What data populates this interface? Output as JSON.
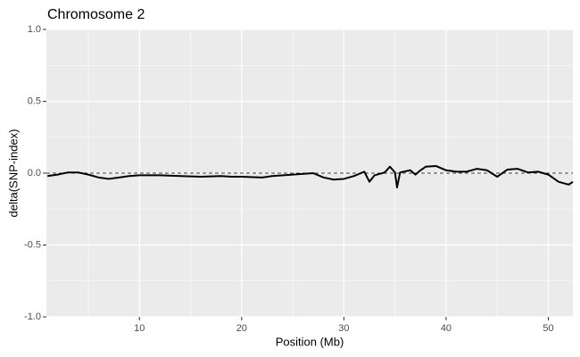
{
  "chart_data": {
    "type": "line",
    "title": "Chromosome 2",
    "xlabel": "Position (Mb)",
    "ylabel": "delta(SNP-index)",
    "x": [
      1,
      2,
      3,
      4,
      5,
      6,
      7,
      8,
      9,
      10,
      12,
      14,
      16,
      18,
      19,
      20,
      22,
      23,
      25,
      27,
      28,
      29,
      30,
      31,
      32,
      32.5,
      33,
      34,
      34.5,
      35,
      35.2,
      35.5,
      36.5,
      37,
      37.5,
      38,
      39,
      40,
      41,
      42,
      43,
      44,
      45,
      46,
      47,
      48,
      49,
      50,
      51,
      52,
      52.4
    ],
    "series": [
      {
        "color": "#000000",
        "values": [
          -0.02,
          -0.01,
          0.005,
          0.005,
          -0.01,
          -0.03,
          -0.04,
          -0.03,
          -0.02,
          -0.015,
          -0.015,
          -0.02,
          -0.025,
          -0.02,
          -0.025,
          -0.025,
          -0.03,
          -0.02,
          -0.01,
          0.0,
          -0.03,
          -0.045,
          -0.04,
          -0.02,
          0.01,
          -0.06,
          -0.015,
          0.005,
          0.045,
          0.005,
          -0.1,
          0.005,
          0.02,
          -0.01,
          0.02,
          0.045,
          0.05,
          0.02,
          0.01,
          0.01,
          0.03,
          0.02,
          -0.025,
          0.025,
          0.03,
          0.005,
          0.01,
          -0.01,
          -0.06,
          -0.08,
          -0.06
        ]
      }
    ],
    "xlim": [
      0.9,
      52.4
    ],
    "ylim": [
      -1,
      1
    ],
    "xticks": [
      10,
      20,
      30,
      40,
      50
    ],
    "yticks": [
      {
        "value": -1,
        "label": "-1.0"
      },
      {
        "value": -0.5,
        "label": "-0.5"
      },
      {
        "value": 0,
        "label": "0.0"
      },
      {
        "value": 0.5,
        "label": "0.5"
      },
      {
        "value": 1,
        "label": "1.0"
      }
    ],
    "x_minor_grid": [
      5,
      15,
      25,
      35,
      45
    ],
    "y_minor_grid": [
      -0.75,
      -0.25,
      0.25,
      0.75
    ],
    "hline": 0,
    "grid": true
  }
}
